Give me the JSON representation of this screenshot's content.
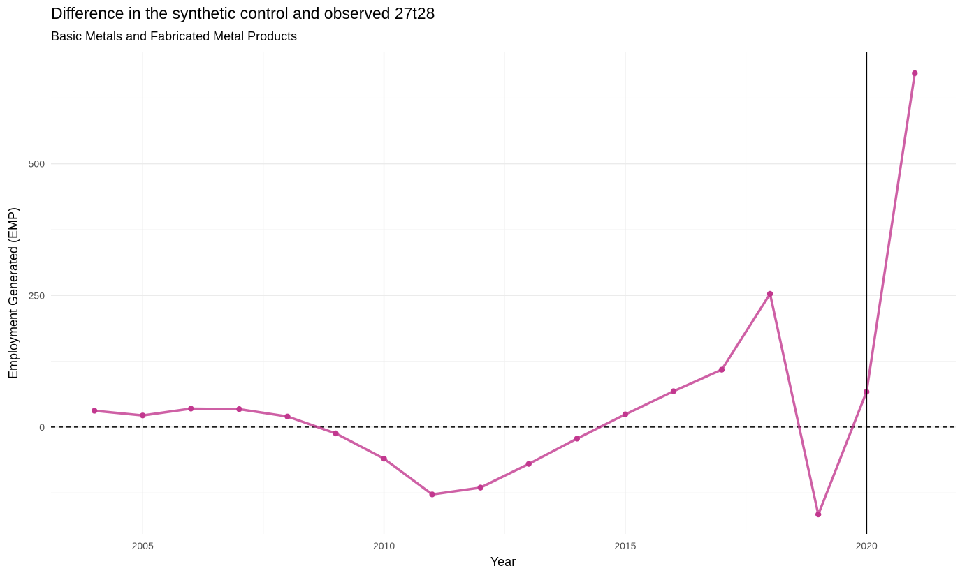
{
  "chart_data": {
    "type": "line",
    "title": "Difference in the synthetic control and observed 27t28",
    "subtitle": "Basic Metals and Fabricated Metal Products",
    "xlabel": "Year",
    "ylabel": "Employment Generated (EMP)",
    "xlim": [
      2003.1,
      2021.85
    ],
    "ylim": [
      -203,
      713
    ],
    "x_ticks": [
      2005,
      2010,
      2015,
      2020
    ],
    "y_ticks": [
      0,
      250,
      500
    ],
    "grid": true,
    "reference_lines": {
      "horizontal_dashed_y": 0,
      "vertical_solid_x": 2020
    },
    "series": [
      {
        "color": "#c2388f",
        "x": [
          2004,
          2005,
          2006,
          2007,
          2008,
          2009,
          2010,
          2011,
          2012,
          2013,
          2014,
          2015,
          2016,
          2017,
          2018,
          2019,
          2020,
          2021
        ],
        "values": [
          31,
          22,
          35,
          34,
          20,
          -12,
          -60,
          -128,
          -115,
          -70,
          -22,
          24,
          68,
          109,
          253,
          -166,
          67,
          672
        ]
      }
    ]
  }
}
